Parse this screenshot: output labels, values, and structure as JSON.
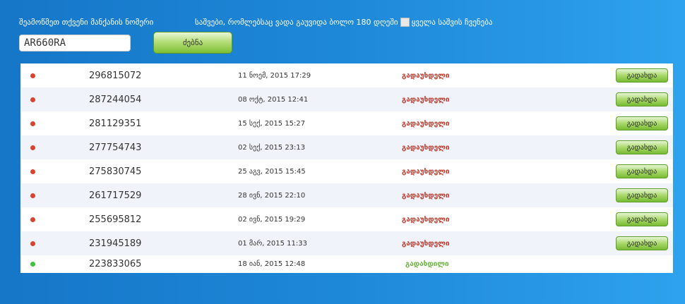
{
  "header": {
    "check_label": "შეამოწმეთ თქვენი მანქანის ნომერი",
    "expired_label": "საშვები, რომლებსაც ვადა გაუვიდა ბოლო 180 დღეში",
    "show_all_label": "ყველა საშვის ჩვენება",
    "show_all_checked": false,
    "plate_value": "AR660RA",
    "search_label": "ძებნა"
  },
  "colors": {
    "unpaid": "#c0392b",
    "paid": "#6cb33f",
    "unpaid_dot": "#d9432f",
    "paid_dot": "#3ec43a"
  },
  "pay_label": "გადახდა",
  "rows": [
    {
      "number": "296815072",
      "date": "11 ნოემ, 2015 17:29",
      "status": "გადაუხდელი",
      "paid": false
    },
    {
      "number": "287244054",
      "date": "08 ოქტ, 2015 12:41",
      "status": "გადაუხდელი",
      "paid": false
    },
    {
      "number": "281129351",
      "date": "15 სექ, 2015 15:27",
      "status": "გადაუხდელი",
      "paid": false
    },
    {
      "number": "277754743",
      "date": "02 სექ, 2015 23:13",
      "status": "გადაუხდელი",
      "paid": false
    },
    {
      "number": "275830745",
      "date": "25 აგვ, 2015 15:45",
      "status": "გადაუხდელი",
      "paid": false
    },
    {
      "number": "261717529",
      "date": "28 ივნ, 2015 22:10",
      "status": "გადაუხდელი",
      "paid": false
    },
    {
      "number": "255695812",
      "date": "02 ივნ, 2015 19:29",
      "status": "გადაუხდელი",
      "paid": false
    },
    {
      "number": "231945189",
      "date": "01 მარ, 2015 11:33",
      "status": "გადაუხდელი",
      "paid": false
    },
    {
      "number": "223833065",
      "date": "18 იან, 2015 12:48",
      "status": "გადახდილი",
      "paid": true
    }
  ]
}
